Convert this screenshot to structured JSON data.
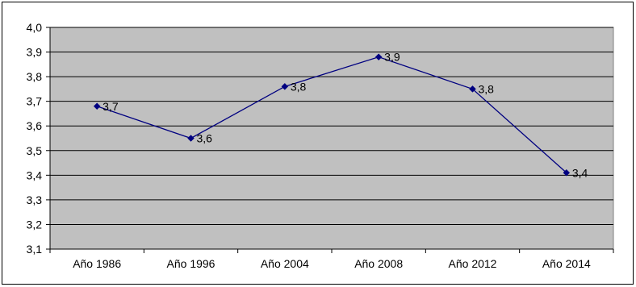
{
  "chart_data": {
    "type": "line",
    "title": "",
    "xlabel": "",
    "ylabel": "",
    "categories": [
      "Año 1986",
      "Año 1996",
      "Año 2004",
      "Año 2008",
      "Año 2012",
      "Año 2014"
    ],
    "series": [
      {
        "values": [
          3.68,
          3.55,
          3.76,
          3.88,
          3.75,
          3.41
        ],
        "data_labels": [
          "3,7",
          "3,6",
          "3,8",
          "3,9",
          "3,8",
          "3,4"
        ],
        "color": "#000080"
      }
    ],
    "ylim": [
      3.1,
      4.0
    ],
    "y_ticks": [
      "3,1",
      "3,2",
      "3,3",
      "3,4",
      "3,5",
      "3,6",
      "3,7",
      "3,8",
      "3,9",
      "4,0"
    ],
    "grid": true,
    "legend": "none",
    "plot_background": "#c0c0c0"
  }
}
